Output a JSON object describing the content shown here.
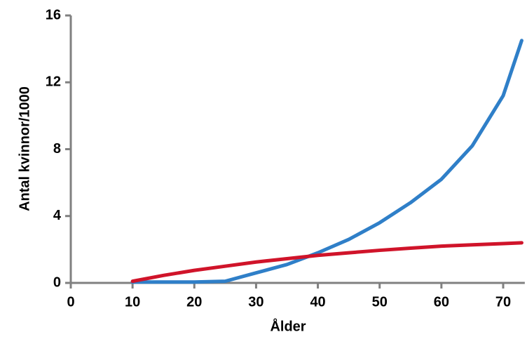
{
  "chart_data": {
    "type": "line",
    "x_label": "Ålder",
    "y_label": "Antal kvinnor/1000",
    "x": [
      10,
      15,
      20,
      25,
      30,
      35,
      40,
      45,
      50,
      55,
      60,
      65,
      70,
      73
    ],
    "series": [
      {
        "color": "#2f7fc8",
        "values": [
          0.05,
          0.05,
          0.05,
          0.1,
          0.6,
          1.1,
          1.8,
          2.6,
          3.6,
          4.8,
          6.2,
          8.2,
          11.2,
          14.5
        ]
      },
      {
        "color": "#d0142a",
        "values": [
          0.1,
          0.45,
          0.75,
          1.0,
          1.25,
          1.45,
          1.65,
          1.8,
          1.95,
          2.08,
          2.2,
          2.28,
          2.35,
          2.4
        ]
      }
    ],
    "xlim": [
      0,
      73.5
    ],
    "ylim": [
      0,
      16
    ],
    "xticks": [
      0,
      10,
      20,
      30,
      40,
      50,
      60,
      70
    ],
    "yticks": [
      0,
      4,
      8,
      12,
      16
    ]
  }
}
